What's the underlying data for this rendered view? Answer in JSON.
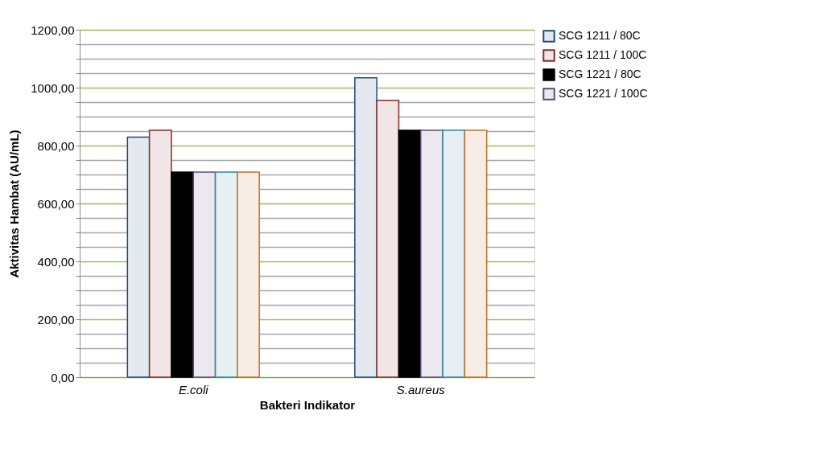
{
  "chart_data": {
    "type": "bar",
    "xlabel": "Bakteri Indikator",
    "ylabel": "Aktivitas Hambat (AU/mL)",
    "categories": [
      "E.coli",
      "S.aureus"
    ],
    "series": [
      {
        "name": "SCG 1211 / 80C",
        "color": "#1f497d",
        "values": [
          829,
          1034
        ]
      },
      {
        "name": "SCG 1211 / 100C",
        "color": "#8b2a2a",
        "values": [
          853,
          956
        ]
      },
      {
        "name": "SCG 1221 / 80C",
        "color": "#000000",
        "values": [
          708,
          853
        ]
      },
      {
        "name": "SCG 1221 / 100C",
        "color": "#5f497a",
        "values": [
          708,
          853
        ]
      },
      {
        "color": "#31859c",
        "values": [
          708,
          853
        ]
      },
      {
        "color": "#c0702a",
        "values": [
          708,
          853
        ]
      }
    ],
    "ylim": [
      0,
      1200
    ],
    "yticks": [
      {
        "value": 0,
        "label": "0,00"
      },
      {
        "value": 50,
        "label": null
      },
      {
        "value": 100,
        "label": null
      },
      {
        "value": 150,
        "label": null
      },
      {
        "value": 200,
        "label": "200,00"
      },
      {
        "value": 250,
        "label": null
      },
      {
        "value": 300,
        "label": null
      },
      {
        "value": 350,
        "label": null
      },
      {
        "value": 400,
        "label": "400,00"
      },
      {
        "value": 450,
        "label": null
      },
      {
        "value": 500,
        "label": null
      },
      {
        "value": 550,
        "label": null
      },
      {
        "value": 600,
        "label": "600,00"
      },
      {
        "value": 650,
        "label": null
      },
      {
        "value": 700,
        "label": null
      },
      {
        "value": 750,
        "label": null
      },
      {
        "value": 800,
        "label": "800,00"
      },
      {
        "value": 850,
        "label": null
      },
      {
        "value": 900,
        "label": null
      },
      {
        "value": 950,
        "label": null
      },
      {
        "value": 1000,
        "label": "1000,00"
      },
      {
        "value": 1050,
        "label": null
      },
      {
        "value": 1100,
        "label": null
      },
      {
        "value": 1150,
        "label": null
      },
      {
        "value": 1200,
        "label": "1200,00"
      }
    ],
    "grid": true,
    "legend": "right"
  }
}
